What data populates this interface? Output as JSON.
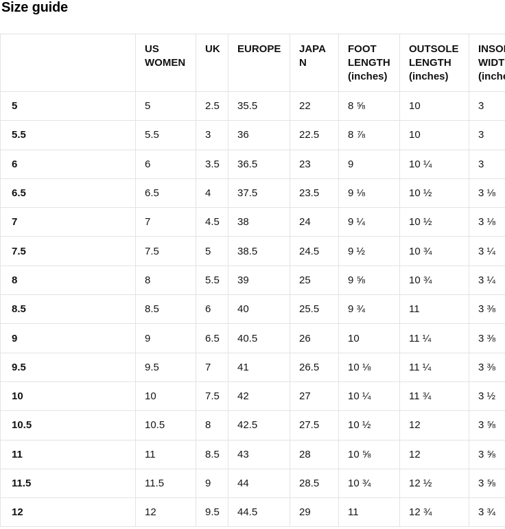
{
  "page": {
    "title": "Size guide"
  },
  "colors": {
    "background": "#ffffff",
    "border": "#e3e3e3",
    "text": "#141414",
    "heading_text": "#111111"
  },
  "table": {
    "columns": [
      {
        "key": "size",
        "label": ""
      },
      {
        "key": "us-women",
        "label": "US WOMEN"
      },
      {
        "key": "uk",
        "label": "UK"
      },
      {
        "key": "europe",
        "label": "EUROPE"
      },
      {
        "key": "japan",
        "label": "JAPAN"
      },
      {
        "key": "foot-length",
        "label": "FOOT LENGTH (inches)"
      },
      {
        "key": "outsole-length",
        "label": "OUTSOLE LENGTH (inches)"
      },
      {
        "key": "insole-width",
        "label": "INSOLE WIDTH (inches)"
      }
    ],
    "rows": [
      [
        "5",
        "5",
        "2.5",
        "35.5",
        "22",
        "8 ⅝",
        "10",
        "3"
      ],
      [
        "5.5",
        "5.5",
        "3",
        "36",
        "22.5",
        "8 ⅞",
        "10",
        "3"
      ],
      [
        "6",
        "6",
        "3.5",
        "36.5",
        "23",
        "9",
        "10 ¼",
        "3"
      ],
      [
        "6.5",
        "6.5",
        "4",
        "37.5",
        "23.5",
        "9 ⅛",
        "10 ½",
        "3 ⅛"
      ],
      [
        "7",
        "7",
        "4.5",
        "38",
        "24",
        "9 ¼",
        "10 ½",
        "3 ⅛"
      ],
      [
        "7.5",
        "7.5",
        "5",
        "38.5",
        "24.5",
        "9 ½",
        "10 ¾",
        "3 ¼"
      ],
      [
        "8",
        "8",
        "5.5",
        "39",
        "25",
        "9 ⅝",
        "10 ¾",
        "3 ¼"
      ],
      [
        "8.5",
        "8.5",
        "6",
        "40",
        "25.5",
        "9 ¾",
        "11",
        "3 ⅜"
      ],
      [
        "9",
        "9",
        "6.5",
        "40.5",
        "26",
        "10",
        "11 ¼",
        "3 ⅜"
      ],
      [
        "9.5",
        "9.5",
        "7",
        "41",
        "26.5",
        "10 ⅛",
        "11 ¼",
        "3 ⅜"
      ],
      [
        "10",
        "10",
        "7.5",
        "42",
        "27",
        "10 ¼",
        "11 ¾",
        "3 ½"
      ],
      [
        "10.5",
        "10.5",
        "8",
        "42.5",
        "27.5",
        "10 ½",
        "12",
        "3 ⅝"
      ],
      [
        "11",
        "11",
        "8.5",
        "43",
        "28",
        "10 ⅝",
        "12",
        "3 ⅝"
      ],
      [
        "11.5",
        "11.5",
        "9",
        "44",
        "28.5",
        "10 ¾",
        "12 ½",
        "3 ⅝"
      ],
      [
        "12",
        "12",
        "9.5",
        "44.5",
        "29",
        "11",
        "12 ¾",
        "3 ¾"
      ]
    ]
  }
}
